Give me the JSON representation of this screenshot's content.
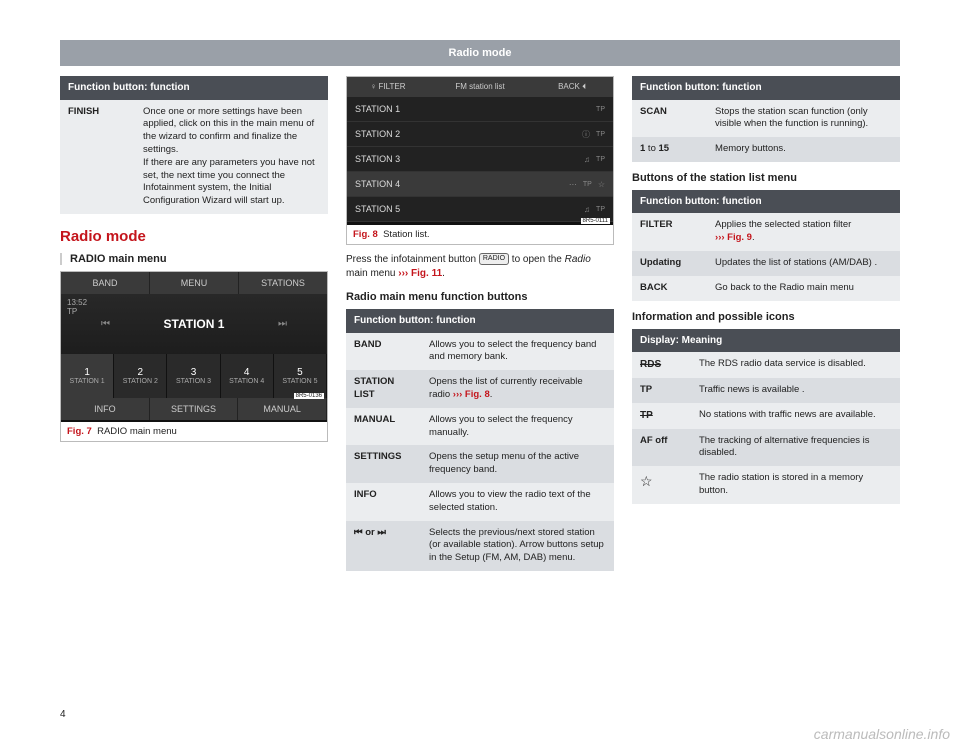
{
  "page": {
    "header": "Radio mode",
    "number": "4",
    "watermark": "carmanualsonline.info"
  },
  "col1": {
    "table1": {
      "header": "Function button: function",
      "rows": [
        {
          "key": "FINISH",
          "val": "Once one or more settings have been applied, click on this in the main menu of the wizard to confirm and finalize the settings.\nIf there are any parameters you have not set, the next time you connect the Infotainment system, the Initial Configuration Wizard will start up."
        }
      ]
    },
    "section_title": "Radio mode",
    "subhead": "RADIO main menu",
    "fig7": {
      "top": [
        "BAND",
        "MENU",
        "STATIONS"
      ],
      "time": "13:52",
      "tp": "TP",
      "station": "STATION 1",
      "presets": [
        {
          "n": "1",
          "l": "STATION 1"
        },
        {
          "n": "2",
          "l": "STATION 2"
        },
        {
          "n": "3",
          "l": "STATION 3"
        },
        {
          "n": "4",
          "l": "STATION 4"
        },
        {
          "n": "5",
          "l": "STATION 5"
        }
      ],
      "bot": [
        "INFO",
        "SETTINGS",
        "MANUAL"
      ],
      "badge": "8R5-0136",
      "caption_num": "Fig. 7",
      "caption": "RADIO main menu"
    }
  },
  "col2": {
    "fig8": {
      "top_left": "♀ FILTER",
      "top_mid": "FM station list",
      "top_right": "BACK ⏴",
      "rows": [
        {
          "name": "STATION 1",
          "ico": "",
          "tp": "TP",
          "star": ""
        },
        {
          "name": "STATION 2",
          "ico": "ⓘ",
          "tp": "TP",
          "star": ""
        },
        {
          "name": "STATION 3",
          "ico": "♫",
          "tp": "TP",
          "star": ""
        },
        {
          "name": "STATION 4",
          "ico": "⋯",
          "tp": "TP",
          "star": "☆"
        },
        {
          "name": "STATION 5",
          "ico": "♫",
          "tp": "TP",
          "star": ""
        }
      ],
      "badge": "8R5-0111",
      "caption_num": "Fig. 8",
      "caption": "Station list."
    },
    "body_pre": "Press the infotainment button ",
    "body_btn": "RADIO",
    "body_mid": " to open the ",
    "body_italic": "Radio",
    "body_post": " main menu ",
    "body_ref": "››› Fig. 11",
    "body_end": ".",
    "subhead2": "Radio main menu function buttons",
    "table2": {
      "header": "Function button: function",
      "rows": [
        {
          "key": "BAND",
          "val": "Allows you to select the frequency band and memory bank."
        },
        {
          "key": "STATION LIST",
          "val": "Opens the list of currently receivable radio ",
          "ref": "››› Fig. 8",
          "suffix": "."
        },
        {
          "key": "MANUAL",
          "val": "Allows you to select the frequency manually."
        },
        {
          "key": "SETTINGS",
          "val": "Opens the setup menu of the active frequency band."
        },
        {
          "key": "INFO",
          "val": "Allows you to view the radio text of the selected station."
        },
        {
          "key": "⏮ or ⏭",
          "val": "Selects the previous/next stored station (or available station). Arrow buttons setup in the Setup (FM, AM, DAB) menu."
        }
      ]
    }
  },
  "col3": {
    "table3": {
      "header": "Function button: function",
      "rows": [
        {
          "key": "SCAN",
          "val": "Stops the station scan function (only visible when the function is running)."
        },
        {
          "key": "1 to 15",
          "val": "Memory buttons.",
          "keybold": false
        }
      ]
    },
    "subhead3": "Buttons of the station list menu",
    "table4": {
      "header": "Function button: function",
      "rows": [
        {
          "key": "FILTER",
          "val": "Applies the selected station filter ",
          "ref": "››› Fig. 9",
          "suffix": "."
        },
        {
          "key": "Updating",
          "val": "Updates the list of stations (AM/DAB) ."
        },
        {
          "key": "BACK",
          "val": "Go back to the Radio main menu"
        }
      ]
    },
    "subhead4": "Information and possible icons",
    "table5": {
      "header": "Display: Meaning",
      "rows": [
        {
          "icon": "RDS",
          "strike": true,
          "val": "The RDS radio data service is disabled."
        },
        {
          "icon": "TP",
          "val": "Traffic news is available ."
        },
        {
          "icon": "TP",
          "strike": true,
          "val": "No stations with traffic news are available."
        },
        {
          "icon": "AF off",
          "val": "The tracking of alternative frequencies is disabled."
        },
        {
          "icon": "☆",
          "val": "The radio station is stored in a memory button."
        }
      ]
    }
  }
}
